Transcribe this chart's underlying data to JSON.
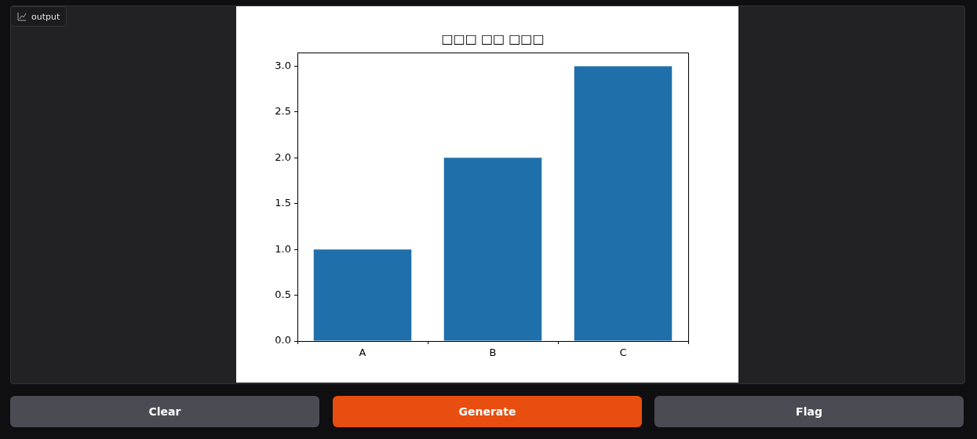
{
  "chart_data": {
    "type": "bar",
    "title": "□□□ □□ □□□",
    "categories": [
      "A",
      "B",
      "C"
    ],
    "values": [
      1,
      2,
      3
    ],
    "color": "#1f6fab",
    "ylim": [
      0,
      3.15
    ],
    "yticks": [
      {
        "value": 0,
        "label": "0.0"
      },
      {
        "value": 0.5,
        "label": "0.5"
      },
      {
        "value": 1,
        "label": "1.0"
      },
      {
        "value": 1.5,
        "label": "1.5"
      },
      {
        "value": 2,
        "label": "2.0"
      },
      {
        "value": 2.5,
        "label": "2.5"
      },
      {
        "value": 3,
        "label": "3.0"
      }
    ],
    "grid": false,
    "legend": false,
    "annotations": [
      "output",
      "Clear",
      "Generate",
      "Flag"
    ]
  }
}
